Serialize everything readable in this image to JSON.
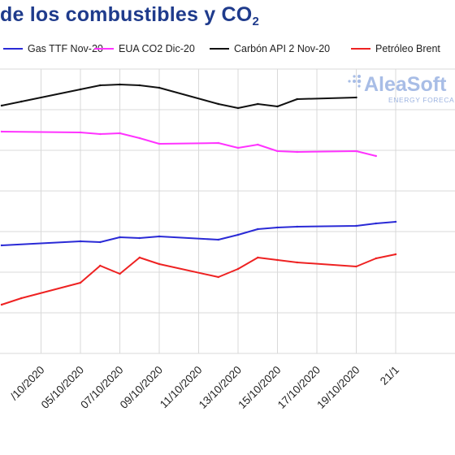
{
  "page": {
    "title_main": "de los combustibles y CO",
    "title_sub": "2"
  },
  "logo": {
    "brand": "AleaSoft",
    "tagline": "ENERGY FORECA"
  },
  "chart_data": {
    "type": "line",
    "x": [
      "2020-10-01",
      "2020-10-02",
      "2020-10-05",
      "2020-10-06",
      "2020-10-07",
      "2020-10-08",
      "2020-10-09",
      "2020-10-12",
      "2020-10-13",
      "2020-10-14",
      "2020-10-15",
      "2020-10-16",
      "2020-10-19",
      "2020-10-20",
      "2020-10-21"
    ],
    "tick_labels": [
      "/10/2020",
      "05/10/2020",
      "07/10/2020",
      "09/10/2020",
      "11/10/2020",
      "13/10/2020",
      "15/10/2020",
      "17/10/2020",
      "19/10/2020",
      "21/1"
    ],
    "grid": true,
    "legend": "top",
    "series": [
      {
        "name": "Gas TTF Nov-20",
        "color": "#2a2ad6",
        "values": [
          13.3,
          null,
          13.8,
          13.7,
          14.3,
          14.2,
          14.4,
          14.0,
          14.6,
          15.3,
          15.5,
          15.6,
          15.7,
          16.0,
          16.2
        ]
      },
      {
        "name": "EUA CO2 Dic-20",
        "color": "#ff33ff",
        "values": [
          27.3,
          null,
          27.2,
          27.0,
          27.1,
          26.5,
          25.8,
          25.9,
          25.3,
          25.7,
          24.9,
          24.8,
          24.9,
          24.3,
          null
        ]
      },
      {
        "name": "Carbón API 2 Nov-20",
        "color": "#111111",
        "values": [
          30.5,
          31.0,
          32.5,
          33.0,
          33.1,
          33.0,
          32.7,
          30.7,
          30.2,
          30.7,
          30.4,
          31.3,
          31.5,
          null,
          null
        ]
      },
      {
        "name": "Petróleo Brent",
        "color": "#ee2222",
        "values": [
          6.0,
          6.8,
          8.7,
          10.8,
          9.8,
          11.8,
          11.0,
          9.4,
          10.4,
          11.8,
          11.5,
          11.2,
          10.7,
          11.7,
          12.2
        ]
      }
    ]
  }
}
